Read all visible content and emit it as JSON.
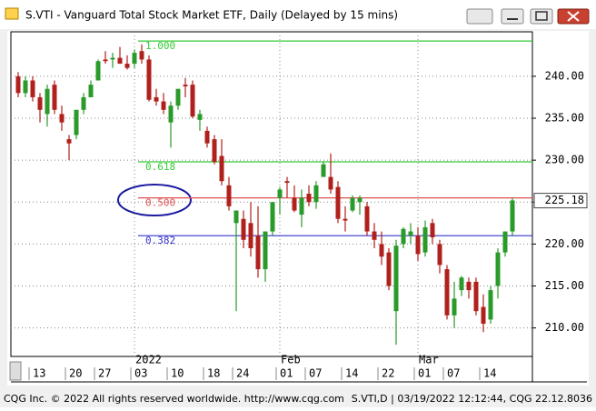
{
  "chart_data": {
    "type": "candlestick",
    "title": "S.VTI - Vanguard Total Stock Market ETF, Daily (Delayed by 15 mins)",
    "footer_left": "CQG Inc. © 2022 All rights reserved worldwide. http://www.cqg.com",
    "footer_right": "S.VTI,D | 03/19/2022 12:12:44, CQG 22.12.8036",
    "up_color": "#2a9a2a",
    "down_color": "#b0201c",
    "open": [
      240,
      238,
      239.5,
      237.5,
      235.5,
      239,
      235.5,
      232.5,
      233,
      236,
      237.5,
      239.5,
      242,
      242,
      242.2,
      241.5,
      241.5,
      243,
      242,
      237.5,
      237,
      234.5,
      236.5,
      239,
      239,
      234.8,
      233.5,
      232.5,
      230.5,
      227,
      222.5,
      223,
      222.5,
      221,
      217,
      221.5,
      225.5,
      227.5,
      225.5,
      223.5,
      226,
      225,
      228,
      228,
      226.8,
      223,
      224,
      225,
      224.5,
      221.5,
      220,
      219,
      212,
      220,
      221,
      221,
      219,
      222.5,
      220,
      217,
      211.5,
      214.5,
      215.5,
      215.5,
      212.5,
      211,
      215,
      219,
      221.5
    ],
    "high": [
      240.5,
      240,
      240,
      238,
      239,
      239.5,
      236.5,
      233,
      236,
      238,
      239.5,
      242,
      243,
      242.8,
      243.5,
      242.5,
      243.2,
      243.8,
      242.5,
      238.5,
      238,
      237,
      238.5,
      239.8,
      239.5,
      236,
      234,
      233,
      232.5,
      228,
      224,
      224,
      225,
      224.5,
      221.5,
      225,
      226.8,
      228,
      227,
      226.5,
      227,
      227.5,
      229.8,
      230.8,
      227.5,
      224.5,
      225.8,
      225.8,
      225,
      222.5,
      221.5,
      219.5,
      220.5,
      222,
      222.5,
      222,
      222.8,
      223,
      220.5,
      217.5,
      215.5,
      216.2,
      216,
      216,
      214,
      215,
      219.5,
      221.5,
      225.5
    ],
    "low": [
      237.5,
      237.5,
      237,
      234.5,
      234,
      235.5,
      233.5,
      230,
      232.5,
      235.5,
      237.5,
      239.5,
      241.5,
      241,
      241.5,
      240.8,
      241,
      241.5,
      237,
      236.5,
      235.5,
      231.5,
      236,
      237.5,
      235,
      233.5,
      231.5,
      229.5,
      227,
      224,
      212,
      219.5,
      218.5,
      216,
      215.5,
      221,
      223.5,
      225.5,
      223.8,
      222,
      224.5,
      224.2,
      228,
      226,
      222.5,
      221.5,
      223.8,
      223.5,
      221,
      219.5,
      217.5,
      214.5,
      208,
      219.5,
      220,
      218,
      218.5,
      220,
      216.5,
      211,
      210,
      213.8,
      213.5,
      211.5,
      209.5,
      210.5,
      213.5,
      218.5,
      221
    ],
    "close": [
      238,
      239.5,
      237.5,
      236,
      238.5,
      236,
      234.5,
      232,
      236,
      237.5,
      239,
      241.8,
      241.8,
      242.2,
      241.5,
      241,
      242.8,
      242,
      237.2,
      237,
      236,
      236.5,
      238.5,
      238.8,
      235.2,
      235.5,
      232,
      229.8,
      227.5,
      224.5,
      224,
      220.5,
      219.5,
      217,
      221.5,
      225,
      226.5,
      227.3,
      224,
      225.5,
      225,
      227,
      229.5,
      226.5,
      223,
      222.8,
      225.5,
      225.5,
      221.5,
      220.5,
      218.5,
      215,
      219.8,
      221.8,
      221.5,
      218.8,
      222,
      220.8,
      217.5,
      211.5,
      213.5,
      216,
      214.5,
      212,
      210.5,
      214.5,
      219,
      221.5,
      225.2
    ],
    "ylim": [
      206.6,
      245.3
    ],
    "yticks": [
      {
        "value": 210,
        "label": "210.00"
      },
      {
        "value": 215,
        "label": "215.00"
      },
      {
        "value": 220,
        "label": "220.00"
      },
      {
        "value": 225,
        "label": "225.00"
      },
      {
        "value": 230,
        "label": "230.00"
      },
      {
        "value": 235,
        "label": "235.00"
      },
      {
        "value": 240,
        "label": "240.00"
      }
    ],
    "xticks": [
      {
        "value": 2,
        "label": "13"
      },
      {
        "value": 7,
        "label": "20"
      },
      {
        "value": 11,
        "label": "27"
      },
      {
        "value": 16,
        "label": "03"
      },
      {
        "value": 21,
        "label": "10"
      },
      {
        "value": 26,
        "label": "18"
      },
      {
        "value": 30,
        "label": "24"
      },
      {
        "value": 36,
        "label": "01"
      },
      {
        "value": 40,
        "label": "07"
      },
      {
        "value": 45,
        "label": "14"
      },
      {
        "value": 50,
        "label": "22"
      },
      {
        "value": 55,
        "label": "01"
      },
      {
        "value": 59,
        "label": "07"
      },
      {
        "value": 64,
        "label": "14"
      }
    ],
    "month_labels": [
      {
        "value": 16,
        "label": "2022"
      },
      {
        "value": 36,
        "label": "Feb"
      },
      {
        "value": 55,
        "label": "Mar"
      }
    ],
    "levels": [
      {
        "name": "1.000",
        "value": 244.2,
        "color": "#33cc33"
      },
      {
        "name": "0.618",
        "value": 229.8,
        "color": "#33cc33"
      },
      {
        "name": "0.500",
        "value": 225.5,
        "color": "#e05050"
      },
      {
        "name": "0.382",
        "value": 221.0,
        "color": "#3333cc"
      }
    ],
    "last_value": 225.18
  }
}
